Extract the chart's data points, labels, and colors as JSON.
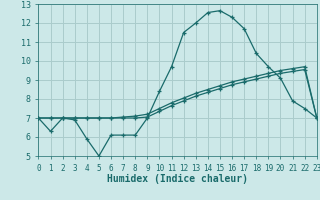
{
  "xlabel": "Humidex (Indice chaleur)",
  "ylabel": "",
  "bg_color": "#cce8e8",
  "grid_color": "#aacccc",
  "line_color": "#1a6b6b",
  "x_values": [
    0,
    1,
    2,
    3,
    4,
    5,
    6,
    7,
    8,
    9,
    10,
    11,
    12,
    13,
    14,
    15,
    16,
    17,
    18,
    19,
    20,
    21,
    22,
    23
  ],
  "line1_y": [
    7.0,
    6.3,
    7.0,
    6.9,
    5.9,
    5.0,
    6.1,
    6.1,
    6.1,
    7.0,
    8.4,
    9.7,
    11.5,
    12.0,
    12.55,
    12.65,
    12.3,
    11.7,
    10.4,
    9.7,
    9.1,
    7.9,
    7.5,
    7.0
  ],
  "line2_y": [
    7.0,
    7.0,
    7.0,
    7.0,
    7.0,
    7.0,
    7.0,
    7.0,
    7.0,
    7.05,
    7.35,
    7.65,
    7.9,
    8.15,
    8.35,
    8.55,
    8.75,
    8.9,
    9.05,
    9.2,
    9.35,
    9.45,
    9.55,
    7.0
  ],
  "line3_y": [
    7.0,
    7.0,
    7.0,
    7.0,
    7.0,
    7.0,
    7.0,
    7.05,
    7.1,
    7.2,
    7.5,
    7.8,
    8.05,
    8.3,
    8.5,
    8.7,
    8.9,
    9.05,
    9.2,
    9.35,
    9.5,
    9.6,
    9.7,
    7.0
  ],
  "ylim": [
    5,
    13
  ],
  "xlim": [
    0,
    23
  ],
  "yticks": [
    5,
    6,
    7,
    8,
    9,
    10,
    11,
    12,
    13
  ],
  "xticks": [
    0,
    1,
    2,
    3,
    4,
    5,
    6,
    7,
    8,
    9,
    10,
    11,
    12,
    13,
    14,
    15,
    16,
    17,
    18,
    19,
    20,
    21,
    22,
    23
  ]
}
